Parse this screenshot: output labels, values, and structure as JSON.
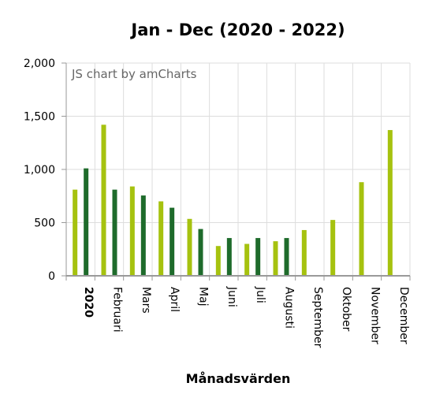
{
  "chart_data": {
    "type": "bar",
    "title": "Jan - Dec (2020 - 2022)",
    "xlabel": "Månadsvärden",
    "ylabel": "",
    "ylim": [
      0,
      2000
    ],
    "yticks": [
      "0",
      "500",
      "1,000",
      "1,500",
      "2,000"
    ],
    "ytick_values": [
      0,
      500,
      1000,
      1500,
      2000
    ],
    "grid": true,
    "credit": "JS chart by amCharts",
    "categories": [
      "2020",
      "Februari",
      "Mars",
      "April",
      "Maj",
      "Juni",
      "Juli",
      "Augusti",
      "September",
      "Oktober",
      "November",
      "December"
    ],
    "bold_categories": [
      "2020"
    ],
    "series": [
      {
        "color": "#a6c20f",
        "values": [
          810,
          1420,
          840,
          700,
          535,
          280,
          300,
          325,
          430,
          525,
          880,
          1370
        ]
      },
      {
        "color": "#1e6b2b",
        "values": [
          1010,
          810,
          755,
          640,
          440,
          355,
          355,
          355,
          null,
          null,
          null,
          null
        ]
      }
    ]
  }
}
